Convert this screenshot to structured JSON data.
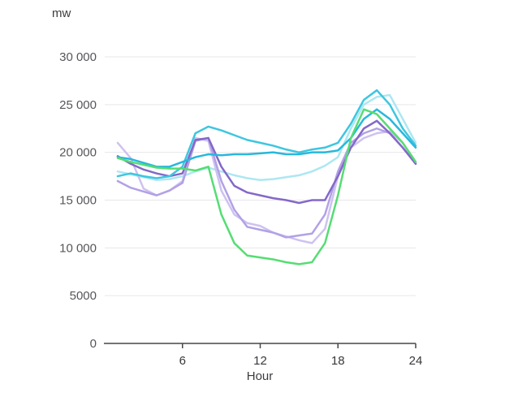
{
  "chart": {
    "unit_label": "mw",
    "xaxis_title": "Hour"
  },
  "chart_data": {
    "type": "line",
    "title": "",
    "xlabel": "Hour",
    "ylabel": "mw",
    "grid": true,
    "legend": "none",
    "x": [
      1,
      2,
      3,
      4,
      5,
      6,
      7,
      8,
      9,
      10,
      11,
      12,
      13,
      14,
      15,
      16,
      17,
      18,
      19,
      20,
      21,
      22,
      23,
      24
    ],
    "xticks": [
      6,
      12,
      18,
      24
    ],
    "ylim": [
      0,
      30000
    ],
    "yticks": [
      0,
      5000,
      10000,
      15000,
      20000,
      25000,
      30000
    ],
    "ytick_labels": [
      "0",
      "5000",
      "10 000",
      "15 000",
      "20 000",
      "25 000",
      "30 000"
    ],
    "series": [
      {
        "name": "pale-cyan",
        "color": "#ade7f2",
        "values": [
          18000,
          17700,
          17400,
          17100,
          17200,
          17500,
          18000,
          18400,
          18000,
          17600,
          17300,
          17100,
          17200,
          17400,
          17600,
          18000,
          18600,
          19500,
          22500,
          25000,
          25800,
          26000,
          23500,
          21000
        ]
      },
      {
        "name": "light-lavender",
        "color": "#cec2f0",
        "values": [
          21000,
          19400,
          16200,
          15500,
          16000,
          17000,
          21500,
          21200,
          16000,
          13500,
          12600,
          12300,
          11600,
          11200,
          10800,
          10500,
          12000,
          17500,
          20500,
          21500,
          22000,
          22200,
          21000,
          19000
        ]
      },
      {
        "name": "lavender",
        "color": "#b2a1e6",
        "values": [
          17000,
          16300,
          15900,
          15500,
          16000,
          16800,
          21200,
          21500,
          17000,
          14000,
          12200,
          11900,
          11600,
          11100,
          11300,
          11500,
          13500,
          18000,
          21000,
          22000,
          22500,
          22000,
          20500,
          18800
        ]
      },
      {
        "name": "purple",
        "color": "#8468c8",
        "values": [
          19600,
          18800,
          18200,
          17800,
          17500,
          17800,
          21300,
          21500,
          18500,
          16500,
          15800,
          15500,
          15200,
          15000,
          14700,
          15000,
          15000,
          17500,
          20500,
          22500,
          23300,
          22000,
          20500,
          18800
        ]
      },
      {
        "name": "teal",
        "color": "#3ec6e0",
        "values": [
          17500,
          17800,
          17500,
          17300,
          17500,
          18500,
          22000,
          22700,
          22300,
          21800,
          21300,
          21000,
          20700,
          20300,
          20000,
          20300,
          20500,
          21000,
          23000,
          25500,
          26500,
          25000,
          22500,
          20700
        ]
      },
      {
        "name": "cyan",
        "color": "#27b8dc",
        "values": [
          19500,
          19300,
          18900,
          18500,
          18500,
          19000,
          19500,
          19800,
          19700,
          19800,
          19800,
          19900,
          20000,
          19800,
          19800,
          20000,
          20000,
          20200,
          21500,
          23500,
          24500,
          23500,
          22000,
          20500
        ]
      },
      {
        "name": "green",
        "color": "#55dd73",
        "values": [
          19400,
          19000,
          18700,
          18400,
          18300,
          18300,
          18100,
          18500,
          13500,
          10500,
          9200,
          9000,
          8800,
          8500,
          8300,
          8500,
          10500,
          15500,
          21500,
          24500,
          24000,
          22500,
          21000,
          19000
        ]
      }
    ]
  }
}
